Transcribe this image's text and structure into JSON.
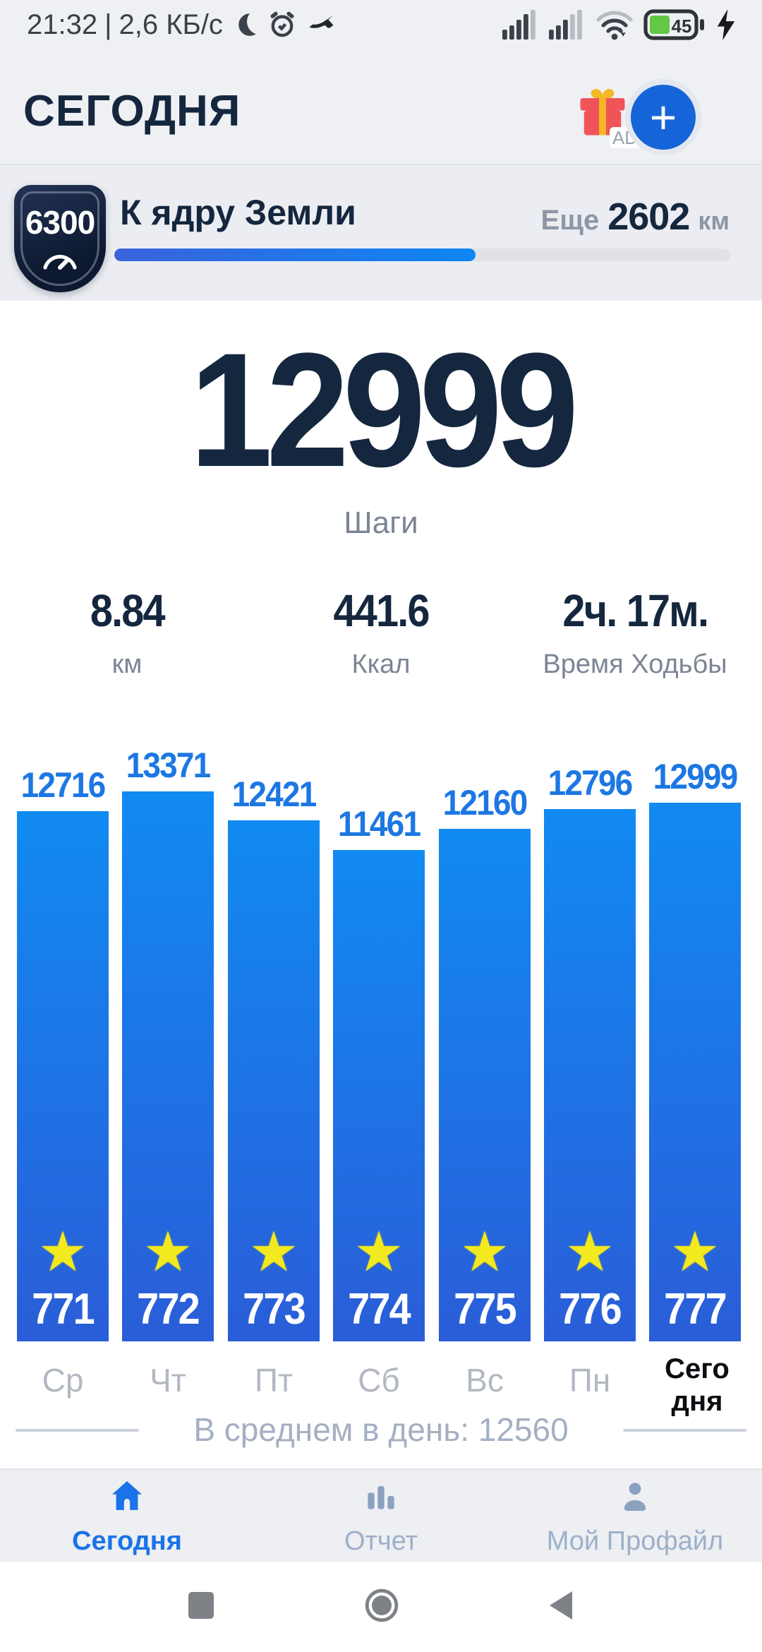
{
  "colors": {
    "accent_blue": "#1a73e8",
    "navy_text": "#14273e",
    "bar_gradient_top": "#118af2",
    "bar_gradient_bottom": "#2a5dd8",
    "star_yellow": "#f2e91f",
    "battery_green": "#63c843",
    "inactive_nav": "#9db0ca",
    "muted_gray": "#7b8594"
  },
  "status_bar": {
    "time": "21:32",
    "divider": "|",
    "net_speed": "2,6 КБ/с",
    "battery_percent": "45",
    "icons": [
      "moon-icon",
      "alarm-icon",
      "shoe-icon",
      "signal-sim1-icon",
      "signal-sim2-icon",
      "wifi-icon",
      "battery-icon",
      "charging-bolt-icon"
    ]
  },
  "header": {
    "title": "СЕГОДНЯ",
    "ad_badge": "AD",
    "plus_label": "+"
  },
  "goal_banner": {
    "badge_value": "6300",
    "title": "К ядру Земли",
    "remaining_prefix": "Еще",
    "remaining_value": "2602",
    "remaining_unit": "км",
    "progress_percent": 58.7
  },
  "today": {
    "steps_value": "12999",
    "steps_label": "Шаги",
    "stats": [
      {
        "value": "8.84",
        "label": "км"
      },
      {
        "value": "441.6",
        "label": "Ккал"
      },
      {
        "value": "2ч. 17м.",
        "label": "Время Ходьбы"
      }
    ]
  },
  "chart_data": {
    "type": "bar",
    "categories": [
      "Ср",
      "Чт",
      "Пт",
      "Сб",
      "Вс",
      "Пн",
      "Сегодня"
    ],
    "values": [
      12716,
      13371,
      12421,
      11461,
      12160,
      12796,
      12999
    ],
    "day_numbers": [
      "771",
      "772",
      "773",
      "774",
      "775",
      "776",
      "777"
    ],
    "star_glyph": "★",
    "today_index": 6,
    "value_labels_shown": true,
    "grid": false,
    "legend": "none"
  },
  "average": {
    "label": "В среднем в день:",
    "value": "12560"
  },
  "bottom_nav": {
    "items": [
      {
        "label": "Сегодня",
        "icon": "home-icon",
        "active": true
      },
      {
        "label": "Отчет",
        "icon": "bar-chart-icon",
        "active": false
      },
      {
        "label": "Мой Профайл",
        "icon": "person-icon",
        "active": false
      }
    ]
  },
  "android_nav": {
    "buttons": [
      "recents-button",
      "home-button",
      "back-button"
    ]
  }
}
